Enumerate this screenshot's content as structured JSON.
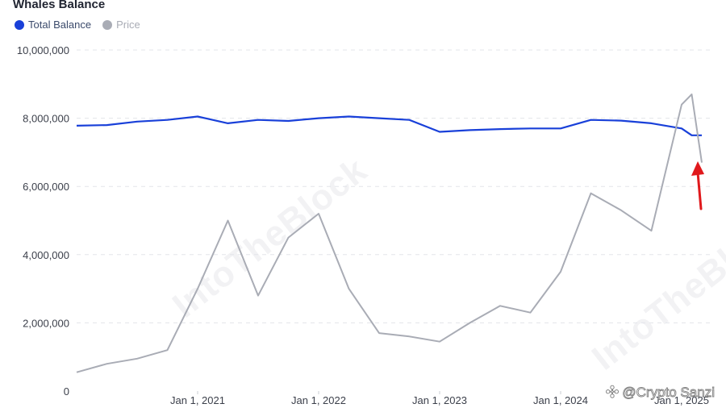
{
  "chart_data": {
    "type": "line",
    "title": "Whales Balance",
    "x": [
      "2020-01",
      "2020-04",
      "2020-07",
      "2020-10",
      "2021-01",
      "2021-04",
      "2021-07",
      "2021-10",
      "2022-01",
      "2022-04",
      "2022-07",
      "2022-10",
      "2023-01",
      "2023-04",
      "2023-07",
      "2023-10",
      "2024-01",
      "2024-04",
      "2024-07",
      "2024-10",
      "2025-01",
      "2025-02",
      "2025-03"
    ],
    "x_ticks": [
      "Jan 1, 2021",
      "Jan 1, 2022",
      "Jan 1, 2023",
      "Jan 1, 2024",
      "Jan 1, 2025"
    ],
    "y_ticks": [
      "0",
      "2,000,000",
      "4,000,000",
      "6,000,000",
      "8,000,000",
      "10,000,000"
    ],
    "ylim": [
      0,
      10000000
    ],
    "grid": true,
    "legend_placement": "top-left",
    "series": [
      {
        "name": "Total Balance",
        "color": "#1940d9",
        "values": [
          7780000,
          7800000,
          7900000,
          7950000,
          8050000,
          7850000,
          7950000,
          7920000,
          8000000,
          8050000,
          8000000,
          7950000,
          7600000,
          7650000,
          7680000,
          7700000,
          7700000,
          7950000,
          7930000,
          7850000,
          7700000,
          7500000,
          7500000
        ]
      },
      {
        "name": "Price",
        "color": "#a9acb5",
        "values": [
          550000,
          800000,
          950000,
          1200000,
          3000000,
          5000000,
          2800000,
          4500000,
          5200000,
          3000000,
          1700000,
          1600000,
          1450000,
          2000000,
          2500000,
          2300000,
          3500000,
          5800000,
          5300000,
          4700000,
          8400000,
          8700000,
          6700000
        ]
      }
    ]
  },
  "annotation": {
    "type": "arrow",
    "color": "#e0191c"
  },
  "watermarks": {
    "brand": "IntoTheBlock",
    "credit": "@Crypto Sanzi"
  }
}
